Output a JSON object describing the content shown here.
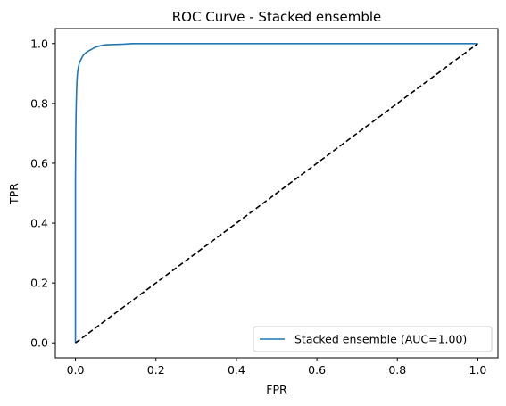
{
  "chart_data": {
    "type": "line",
    "title": "ROC Curve - Stacked ensemble",
    "xlabel": "FPR",
    "ylabel": "TPR",
    "xlim": [
      -0.05,
      1.05
    ],
    "ylim": [
      -0.05,
      1.05
    ],
    "xticks": [
      0.0,
      0.2,
      0.4,
      0.6,
      0.8,
      1.0
    ],
    "yticks": [
      0.0,
      0.2,
      0.4,
      0.6,
      0.8,
      1.0
    ],
    "tick_labels_x": [
      "0.0",
      "0.2",
      "0.4",
      "0.6",
      "0.8",
      "1.0"
    ],
    "tick_labels_y": [
      "0.0",
      "0.2",
      "0.4",
      "0.6",
      "0.8",
      "1.0"
    ],
    "grid": false,
    "legend_position": "lower-right",
    "series": [
      {
        "name": "Stacked ensemble (AUC=1.00)",
        "color": "#1f77b4",
        "style": "solid",
        "x": [
          0.0,
          0.0,
          0.001,
          0.002,
          0.003,
          0.004,
          0.005,
          0.007,
          0.01,
          0.013,
          0.017,
          0.02,
          0.025,
          0.03,
          0.04,
          0.05,
          0.06,
          0.07,
          0.08,
          0.1,
          0.12,
          0.14,
          0.2,
          0.4,
          0.6,
          0.8,
          1.0
        ],
        "y": [
          0.0,
          0.55,
          0.72,
          0.8,
          0.85,
          0.88,
          0.9,
          0.92,
          0.935,
          0.945,
          0.955,
          0.962,
          0.968,
          0.973,
          0.981,
          0.988,
          0.992,
          0.995,
          0.996,
          0.997,
          0.998,
          1.0,
          1.0,
          1.0,
          1.0,
          1.0,
          1.0
        ]
      },
      {
        "name": "",
        "color": "#000000",
        "style": "dashed",
        "x": [
          0.0,
          1.0
        ],
        "y": [
          0.0,
          1.0
        ]
      }
    ]
  }
}
